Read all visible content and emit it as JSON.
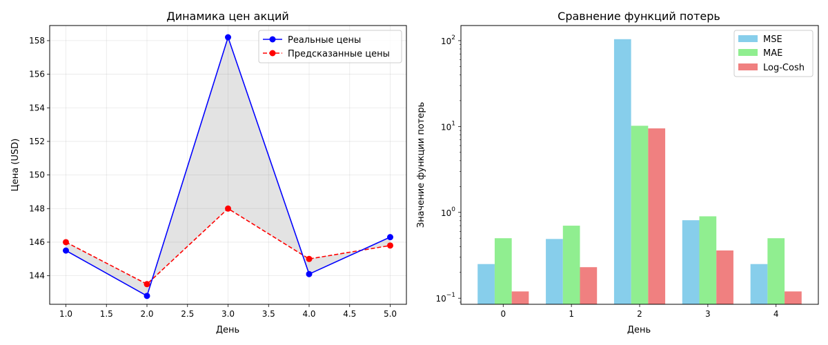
{
  "chart_data": [
    {
      "type": "line",
      "title": "Динамика цен акций",
      "xlabel": "День",
      "ylabel": "Цена (USD)",
      "x": [
        1,
        2,
        3,
        4,
        5
      ],
      "xlim": [
        0.8,
        5.2
      ],
      "ylim": [
        142.3,
        158.9
      ],
      "xticks": [
        "1.0",
        "1.5",
        "2.0",
        "2.5",
        "3.0",
        "3.5",
        "4.0",
        "4.5",
        "5.0"
      ],
      "yticks": [
        "144",
        "146",
        "148",
        "150",
        "152",
        "154",
        "156",
        "158"
      ],
      "grid": true,
      "legend_position": "top-right",
      "fill_between": true,
      "series": [
        {
          "name": "Реальные цены",
          "values": [
            145.5,
            142.8,
            158.2,
            144.1,
            146.3
          ],
          "color": "#0000ff",
          "style": "solid"
        },
        {
          "name": "Предсказанные цены",
          "values": [
            146.0,
            143.5,
            148.0,
            145.0,
            145.8
          ],
          "color": "#ff0000",
          "style": "dashed"
        }
      ]
    },
    {
      "type": "bar",
      "title": "Сравнение функций потерь",
      "xlabel": "День",
      "ylabel": "Значение функции потерь",
      "yscale": "log",
      "categories": [
        "0",
        "1",
        "2",
        "3",
        "4"
      ],
      "ylim": [
        0.085,
        150
      ],
      "yticks": [
        {
          "value": 0.1,
          "base": "10",
          "exp": "−1"
        },
        {
          "value": 1,
          "base": "10",
          "exp": "0"
        },
        {
          "value": 10,
          "base": "10",
          "exp": "1"
        },
        {
          "value": 100,
          "base": "10",
          "exp": "2"
        }
      ],
      "legend_position": "top-right",
      "series": [
        {
          "name": "MSE",
          "values": [
            0.25,
            0.49,
            104.04,
            0.81,
            0.25
          ],
          "color": "#87ceeb"
        },
        {
          "name": "MAE",
          "values": [
            0.5,
            0.7,
            10.2,
            0.9,
            0.5
          ],
          "color": "#90ee90"
        },
        {
          "name": "Log-Cosh",
          "values": [
            0.12,
            0.23,
            9.51,
            0.36,
            0.12
          ],
          "color": "#f08080"
        }
      ]
    }
  ]
}
